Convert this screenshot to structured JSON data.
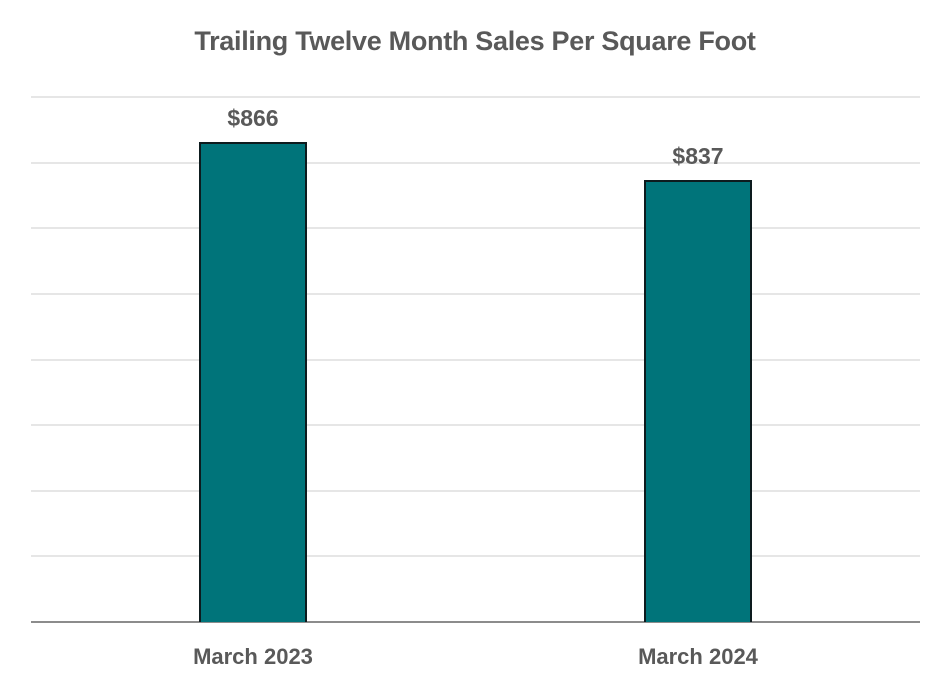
{
  "chart_data": {
    "type": "bar",
    "title": "Trailing Twelve Month Sales Per Square Foot",
    "categories": [
      "March 2023",
      "March 2024"
    ],
    "values": [
      866,
      837
    ],
    "data_labels": [
      "$866",
      "$837"
    ],
    "xlabel": "",
    "ylabel": "",
    "ylim": [
      500,
      900
    ],
    "ytick_step": 50,
    "y_axis_labels_visible": false,
    "grid": true,
    "legend": "none",
    "bar_color": "#00747A",
    "bar_edge_color": "#0d1b1e"
  }
}
